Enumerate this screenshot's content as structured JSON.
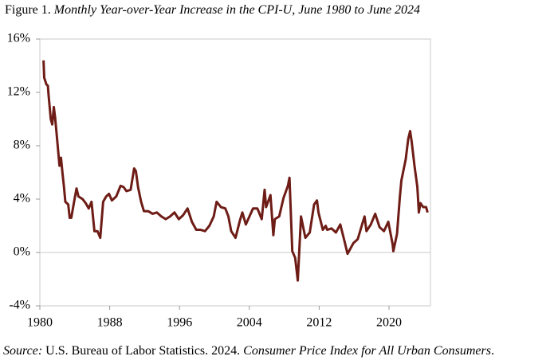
{
  "chart_data": {
    "type": "line",
    "title_prefix": "Figure 1.",
    "title": "Monthly Year-over-Year Increase in the CPI-U, June 1980 to June 2024",
    "source": [
      "Source:",
      "U.S. Bureau of Labor Statistics. 2024.",
      "Consumer Price Index for All Urban Consumers",
      "."
    ],
    "xlim": [
      1980,
      2024.75
    ],
    "xticks": [
      1980,
      1988,
      1996,
      2004,
      2012,
      2020
    ],
    "ylim": [
      -4,
      16
    ],
    "yticks": [
      {
        "value": -4,
        "label": "-4%"
      },
      {
        "value": 0,
        "label": "0%"
      },
      {
        "value": 4,
        "label": "4%"
      },
      {
        "value": 8,
        "label": "8%"
      },
      {
        "value": 12,
        "label": "12%"
      },
      {
        "value": 16,
        "label": "16%"
      }
    ],
    "series": [
      {
        "color": "#6e1c16",
        "x": [
          1980.42,
          1980.5,
          1980.75,
          1980.92,
          1981.0,
          1981.25,
          1981.42,
          1981.6,
          1981.75,
          1981.92,
          1982.25,
          1982.42,
          1982.6,
          1982.75,
          1982.92,
          1983.25,
          1983.42,
          1983.6,
          1983.92,
          1984.2,
          1984.42,
          1984.9,
          1985.25,
          1985.6,
          1985.92,
          1986.25,
          1986.6,
          1986.92,
          1987.25,
          1987.6,
          1987.92,
          1988.25,
          1988.75,
          1989.25,
          1989.6,
          1989.92,
          1990.4,
          1990.8,
          1991.0,
          1991.25,
          1991.6,
          1991.92,
          1992.4,
          1992.92,
          1993.4,
          1993.92,
          1994.42,
          1994.92,
          1995.42,
          1995.92,
          1996.42,
          1996.92,
          1997.42,
          1997.92,
          1998.42,
          1998.92,
          1999.42,
          1999.92,
          2000.25,
          2000.75,
          2001.25,
          2001.6,
          2001.92,
          2002.42,
          2002.92,
          2003.2,
          2003.6,
          2004.42,
          2004.92,
          2005.42,
          2005.75,
          2005.92,
          2006.42,
          2006.75,
          2006.92,
          2007.42,
          2007.92,
          2008.42,
          2008.6,
          2008.92,
          2009.25,
          2009.55,
          2009.92,
          2010.42,
          2010.92,
          2011.42,
          2011.75,
          2011.92,
          2012.42,
          2012.75,
          2012.92,
          2013.42,
          2013.92,
          2014.42,
          2014.92,
          2015.25,
          2015.42,
          2015.92,
          2016.42,
          2016.92,
          2017.2,
          2017.42,
          2017.92,
          2018.42,
          2018.92,
          2019.42,
          2019.92,
          2020.42,
          2020.5,
          2020.92,
          2021.25,
          2021.42,
          2021.92,
          2022.2,
          2022.42,
          2022.6,
          2022.92,
          2023.25,
          2023.42,
          2023.6,
          2023.92,
          2024.25,
          2024.42
        ],
        "values": [
          14.4,
          13.1,
          12.6,
          12.5,
          11.8,
          10.0,
          9.6,
          10.9,
          10.1,
          8.9,
          6.5,
          7.1,
          5.9,
          5.0,
          3.8,
          3.6,
          2.6,
          2.6,
          3.8,
          4.8,
          4.2,
          4.0,
          3.7,
          3.3,
          3.8,
          1.6,
          1.6,
          1.1,
          3.8,
          4.2,
          4.4,
          3.9,
          4.2,
          5.0,
          4.9,
          4.6,
          4.7,
          6.3,
          6.1,
          4.9,
          3.8,
          3.1,
          3.1,
          2.9,
          3.0,
          2.7,
          2.5,
          2.7,
          3.0,
          2.5,
          2.8,
          3.3,
          2.3,
          1.7,
          1.7,
          1.6,
          2.0,
          2.7,
          3.8,
          3.4,
          3.3,
          2.7,
          1.6,
          1.1,
          2.4,
          3.0,
          2.1,
          3.3,
          3.3,
          2.5,
          4.7,
          3.4,
          4.3,
          1.3,
          2.5,
          2.7,
          4.1,
          5.0,
          5.6,
          0.1,
          -0.4,
          -2.1,
          2.7,
          1.1,
          1.5,
          3.6,
          3.9,
          3.0,
          1.7,
          2.0,
          1.7,
          1.8,
          1.5,
          2.1,
          0.8,
          -0.1,
          0.1,
          0.7,
          1.0,
          2.1,
          2.7,
          1.6,
          2.1,
          2.9,
          1.9,
          1.6,
          2.3,
          0.6,
          0.1,
          1.4,
          4.2,
          5.4,
          7.0,
          8.5,
          9.1,
          8.3,
          6.5,
          4.9,
          3.0,
          3.7,
          3.4,
          3.4,
          3.0
        ]
      }
    ]
  }
}
